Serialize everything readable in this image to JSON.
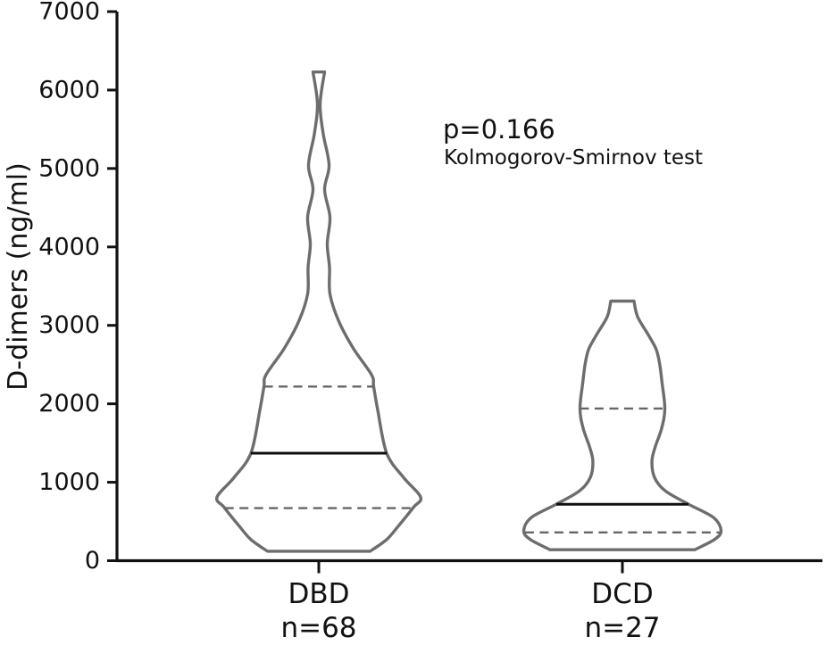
{
  "figure": {
    "background": "#ffffff"
  },
  "colors": {
    "axis": "#111111",
    "text": "#111111",
    "violin_outline": "#6d6d6d",
    "median_line": "#0f0f0f",
    "quartile_line": "#666666"
  },
  "chart_data": {
    "type": "violin",
    "title": "",
    "ylabel": "D-dimers (ng/ml)",
    "xlabel": "",
    "ylim": [
      0,
      7000
    ],
    "yticks": [
      0,
      1000,
      2000,
      3000,
      4000,
      5000,
      6000,
      7000
    ],
    "grid": false,
    "legend": null,
    "annotation": {
      "p_value": "p=0.166",
      "test": "Kolmogorov-Smirnov test"
    },
    "categories": [
      "DBD",
      "DCD"
    ],
    "series": [
      {
        "name": "DBD",
        "n": 68,
        "n_label": "n=68",
        "median": 1370,
        "q1": 670,
        "q3": 2220,
        "min": 120,
        "max": 6230,
        "profile": [
          {
            "v": 6230,
            "w": 0.057
          },
          {
            "v": 5820,
            "w": 0.013
          },
          {
            "v": 5440,
            "w": 0.044
          },
          {
            "v": 5040,
            "w": 0.101
          },
          {
            "v": 4730,
            "w": 0.057
          },
          {
            "v": 4380,
            "w": 0.11
          },
          {
            "v": 4040,
            "w": 0.083
          },
          {
            "v": 3740,
            "w": 0.105
          },
          {
            "v": 3400,
            "w": 0.11
          },
          {
            "v": 3050,
            "w": 0.197
          },
          {
            "v": 2710,
            "w": 0.338
          },
          {
            "v": 2370,
            "w": 0.518
          },
          {
            "v": 2220,
            "w": 0.539
          },
          {
            "v": 1920,
            "w": 0.579
          },
          {
            "v": 1370,
            "w": 0.667
          },
          {
            "v": 1060,
            "w": 0.833
          },
          {
            "v": 810,
            "w": 1.0
          },
          {
            "v": 680,
            "w": 0.93
          },
          {
            "v": 440,
            "w": 0.781
          },
          {
            "v": 270,
            "w": 0.667
          },
          {
            "v": 120,
            "w": 0.504
          }
        ]
      },
      {
        "name": "DCD",
        "n": 27,
        "n_label": "n=27",
        "median": 720,
        "q1": 360,
        "q3": 1940,
        "min": 140,
        "max": 3310,
        "profile": [
          {
            "v": 3310,
            "w": 0.114
          },
          {
            "v": 3110,
            "w": 0.149
          },
          {
            "v": 2880,
            "w": 0.254
          },
          {
            "v": 2690,
            "w": 0.333
          },
          {
            "v": 2490,
            "w": 0.368
          },
          {
            "v": 2260,
            "w": 0.39
          },
          {
            "v": 1940,
            "w": 0.417
          },
          {
            "v": 1690,
            "w": 0.386
          },
          {
            "v": 1460,
            "w": 0.325
          },
          {
            "v": 1270,
            "w": 0.29
          },
          {
            "v": 1060,
            "w": 0.316
          },
          {
            "v": 890,
            "w": 0.421
          },
          {
            "v": 720,
            "w": 0.649
          },
          {
            "v": 550,
            "w": 0.895
          },
          {
            "v": 380,
            "w": 0.969
          },
          {
            "v": 270,
            "w": 0.904
          },
          {
            "v": 140,
            "w": 0.711
          }
        ]
      }
    ]
  }
}
